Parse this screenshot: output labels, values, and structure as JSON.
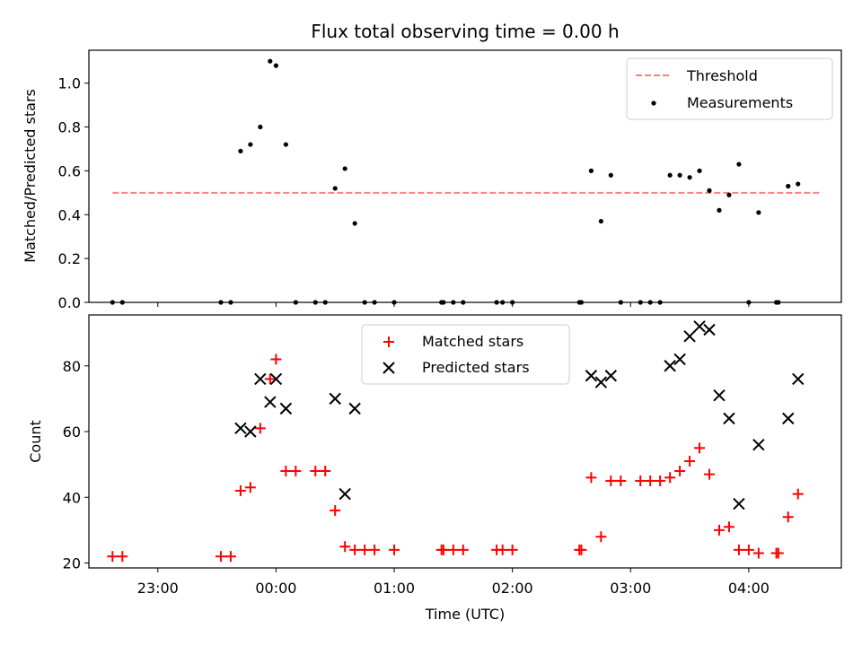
{
  "chart_data": [
    {
      "type": "scatter",
      "title": "Flux total observing time = 0.00 h",
      "xlabel": "",
      "ylabel": "Matched/Predicted stars",
      "xlim": [
        "22:25",
        "04:47"
      ],
      "ylim": [
        0.0,
        1.15
      ],
      "yticks": [
        0.0,
        0.2,
        0.4,
        0.6,
        0.8,
        1.0
      ],
      "ytick_labels": [
        "0.0",
        "0.2",
        "0.4",
        "0.6",
        "0.8",
        "1.0"
      ],
      "legend": {
        "position": "top-right",
        "entries": [
          "Threshold",
          "Measurements"
        ]
      },
      "threshold": {
        "name": "Threshold",
        "y": 0.5,
        "x": [
          "22:37",
          "04:37"
        ],
        "color": "#ff7f7f",
        "style": "dashed"
      },
      "series": [
        {
          "name": "Measurements",
          "color": "#000000",
          "points": [
            [
              "22:37",
              0.0
            ],
            [
              "22:42",
              0.0
            ],
            [
              "23:32",
              0.0
            ],
            [
              "23:37",
              0.0
            ],
            [
              "23:42",
              0.69
            ],
            [
              "23:47",
              0.72
            ],
            [
              "23:52",
              0.8
            ],
            [
              "23:57",
              1.1
            ],
            [
              "00:00",
              1.08
            ],
            [
              "00:05",
              0.72
            ],
            [
              "00:10",
              0.0
            ],
            [
              "00:20",
              0.0
            ],
            [
              "00:25",
              0.0
            ],
            [
              "00:30",
              0.52
            ],
            [
              "00:35",
              0.61
            ],
            [
              "00:40",
              0.36
            ],
            [
              "00:45",
              0.0
            ],
            [
              "00:50",
              0.0
            ],
            [
              "01:00",
              0.0
            ],
            [
              "01:24",
              0.0
            ],
            [
              "01:25",
              0.0
            ],
            [
              "01:30",
              0.0
            ],
            [
              "01:35",
              0.0
            ],
            [
              "01:52",
              0.0
            ],
            [
              "01:55",
              0.0
            ],
            [
              "02:00",
              0.0
            ],
            [
              "02:34",
              0.0
            ],
            [
              "02:35",
              0.0
            ],
            [
              "02:40",
              0.6
            ],
            [
              "02:45",
              0.37
            ],
            [
              "02:50",
              0.58
            ],
            [
              "02:55",
              0.0
            ],
            [
              "03:05",
              0.0
            ],
            [
              "03:10",
              0.0
            ],
            [
              "03:15",
              0.0
            ],
            [
              "03:20",
              0.58
            ],
            [
              "03:25",
              0.58
            ],
            [
              "03:30",
              0.57
            ],
            [
              "03:35",
              0.6
            ],
            [
              "03:40",
              0.51
            ],
            [
              "03:45",
              0.42
            ],
            [
              "03:50",
              0.49
            ],
            [
              "03:55",
              0.63
            ],
            [
              "04:00",
              0.0
            ],
            [
              "04:05",
              0.41
            ],
            [
              "04:14",
              0.0
            ],
            [
              "04:15",
              0.0
            ],
            [
              "04:20",
              0.53
            ],
            [
              "04:25",
              0.54
            ]
          ]
        }
      ]
    },
    {
      "type": "scatter",
      "title": "",
      "xlabel": "Time (UTC)",
      "ylabel": "Count",
      "xlim": [
        "22:25",
        "04:47"
      ],
      "ylim": [
        18.5,
        95.5
      ],
      "yticks": [
        20,
        40,
        60,
        80
      ],
      "ytick_labels": [
        "20",
        "40",
        "60",
        "80"
      ],
      "xticks": [
        "23:00",
        "00:00",
        "01:00",
        "02:00",
        "03:00",
        "04:00"
      ],
      "legend": {
        "position": "top-center",
        "entries": [
          "Matched stars",
          "Predicted stars"
        ]
      },
      "series": [
        {
          "name": "Matched stars",
          "marker": "plus",
          "color": "#ff0000",
          "points": [
            [
              "22:37",
              22
            ],
            [
              "22:42",
              22
            ],
            [
              "23:32",
              22
            ],
            [
              "23:37",
              22
            ],
            [
              "23:42",
              42
            ],
            [
              "23:47",
              43
            ],
            [
              "23:52",
              61
            ],
            [
              "23:57",
              76
            ],
            [
              "00:00",
              82
            ],
            [
              "00:05",
              48
            ],
            [
              "00:10",
              48
            ],
            [
              "00:20",
              48
            ],
            [
              "00:25",
              48
            ],
            [
              "00:30",
              36
            ],
            [
              "00:35",
              25
            ],
            [
              "00:40",
              24
            ],
            [
              "00:45",
              24
            ],
            [
              "00:50",
              24
            ],
            [
              "01:00",
              24
            ],
            [
              "01:24",
              24
            ],
            [
              "01:25",
              24
            ],
            [
              "01:30",
              24
            ],
            [
              "01:35",
              24
            ],
            [
              "01:52",
              24
            ],
            [
              "01:55",
              24
            ],
            [
              "02:00",
              24
            ],
            [
              "02:34",
              24
            ],
            [
              "02:35",
              24
            ],
            [
              "02:40",
              46
            ],
            [
              "02:45",
              28
            ],
            [
              "02:50",
              45
            ],
            [
              "02:55",
              45
            ],
            [
              "03:05",
              45
            ],
            [
              "03:10",
              45
            ],
            [
              "03:15",
              45
            ],
            [
              "03:20",
              46
            ],
            [
              "03:25",
              48
            ],
            [
              "03:30",
              51
            ],
            [
              "03:35",
              55
            ],
            [
              "03:40",
              47
            ],
            [
              "03:45",
              30
            ],
            [
              "03:50",
              31
            ],
            [
              "03:55",
              24
            ],
            [
              "04:00",
              24
            ],
            [
              "04:05",
              23
            ],
            [
              "04:14",
              23
            ],
            [
              "04:15",
              23
            ],
            [
              "04:20",
              34
            ],
            [
              "04:25",
              41
            ]
          ]
        },
        {
          "name": "Predicted stars",
          "marker": "x",
          "color": "#000000",
          "points": [
            [
              "23:42",
              61
            ],
            [
              "23:47",
              60
            ],
            [
              "23:52",
              76
            ],
            [
              "23:57",
              69
            ],
            [
              "00:00",
              76
            ],
            [
              "00:05",
              67
            ],
            [
              "00:30",
              70
            ],
            [
              "00:35",
              41
            ],
            [
              "00:40",
              67
            ],
            [
              "02:40",
              77
            ],
            [
              "02:45",
              75
            ],
            [
              "02:50",
              77
            ],
            [
              "03:20",
              80
            ],
            [
              "03:25",
              82
            ],
            [
              "03:30",
              89
            ],
            [
              "03:35",
              92
            ],
            [
              "03:40",
              91
            ],
            [
              "03:45",
              71
            ],
            [
              "03:50",
              64
            ],
            [
              "03:55",
              38
            ],
            [
              "04:05",
              56
            ],
            [
              "04:20",
              64
            ],
            [
              "04:25",
              76
            ]
          ]
        }
      ]
    }
  ]
}
